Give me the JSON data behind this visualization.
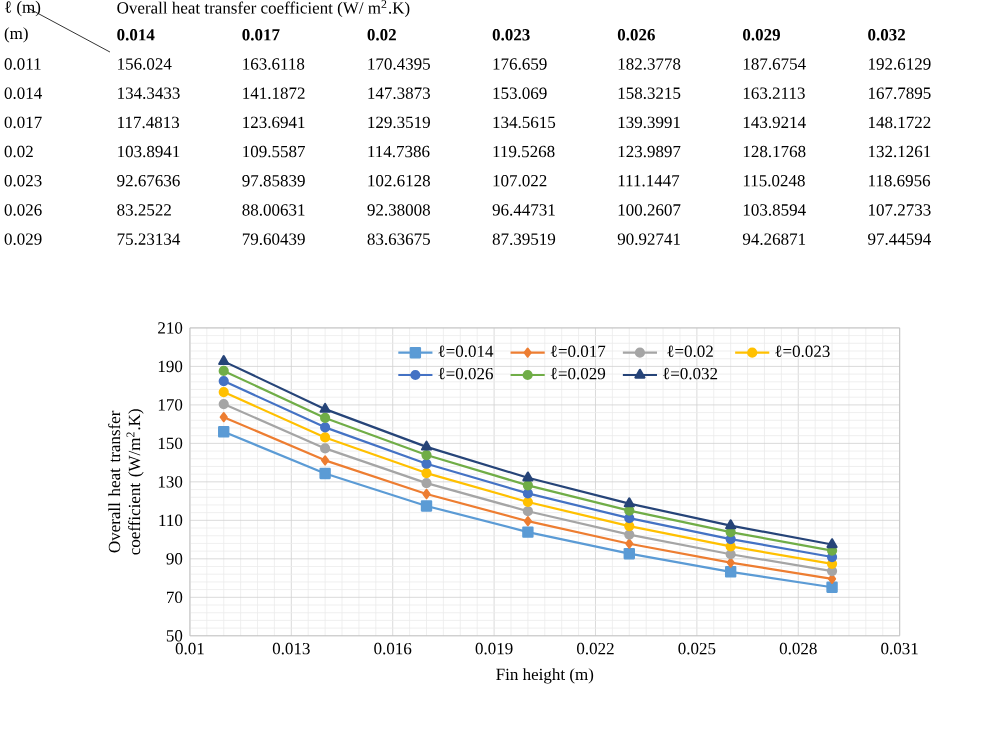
{
  "chart_data": [
    {
      "type": "heatmap",
      "data_labels": true,
      "title": "Overall heat transfer coefficient (W/ m$^{2}$.K)",
      "xlabel": "ℓ (m)",
      "ylabel": "(m)",
      "categories": [
        "0.014",
        "0.017",
        "0.02",
        "0.023",
        "0.026",
        "0.029",
        "0.032"
      ],
      "y_categories": [
        "0.011",
        "0.014",
        "0.017",
        "0.02",
        "0.023",
        "0.026",
        "0.029"
      ],
      "cells": [
        [
          156.024,
          163.6118,
          170.4395,
          176.659,
          182.3778,
          187.6754,
          192.6129
        ],
        [
          134.3433,
          141.1872,
          147.3873,
          153.069,
          158.3215,
          163.2113,
          167.7895
        ],
        [
          117.4813,
          123.6941,
          129.3519,
          134.5615,
          139.3991,
          143.9214,
          148.1722
        ],
        [
          103.8941,
          109.5587,
          114.7386,
          119.5268,
          123.9897,
          128.1768,
          132.1261
        ],
        [
          92.67636,
          97.85839,
          102.6128,
          107.022,
          111.1447,
          115.0248,
          118.6956
        ],
        [
          83.2522,
          88.00631,
          92.38008,
          96.44731,
          100.2607,
          103.8594,
          107.2733
        ],
        [
          75.23134,
          79.60439,
          83.63675,
          87.39519,
          90.92741,
          94.26871,
          97.44594
        ]
      ]
    },
    {
      "type": "line",
      "xlabel": "Fin height (m)",
      "ylabel": "Overall heat transfer coefficient (W/m$^{2}$.K)",
      "x": [
        0.011,
        0.014,
        0.017,
        0.02,
        0.023,
        0.026,
        0.029
      ],
      "series": [
        {
          "name": "ℓ=0.014",
          "color": "#5b9bd5",
          "marker": "square",
          "values": [
            156.024,
            134.3433,
            117.4813,
            103.8941,
            92.67636,
            83.2522,
            75.23134
          ]
        },
        {
          "name": "ℓ=0.017",
          "color": "#ed7d31",
          "marker": "diamond",
          "values": [
            163.6118,
            141.1872,
            123.6941,
            109.5587,
            97.85839,
            88.00631,
            79.60439
          ]
        },
        {
          "name": "ℓ=0.02",
          "color": "#a5a5a5",
          "marker": "circle",
          "values": [
            170.4395,
            147.3873,
            129.3519,
            114.7386,
            102.6128,
            92.38008,
            83.63675
          ]
        },
        {
          "name": "ℓ=0.023",
          "color": "#ffc000",
          "marker": "circle",
          "values": [
            176.659,
            153.069,
            134.5615,
            119.5268,
            107.022,
            96.44731,
            87.39519
          ]
        },
        {
          "name": "ℓ=0.026",
          "color": "#4472c4",
          "marker": "circle",
          "values": [
            182.3778,
            158.3215,
            139.3991,
            123.9897,
            111.1447,
            100.2607,
            90.92741
          ]
        },
        {
          "name": "ℓ=0.029",
          "color": "#70ad47",
          "marker": "circle",
          "values": [
            187.6754,
            163.2113,
            143.9214,
            128.1768,
            115.0248,
            103.8594,
            94.26871
          ]
        },
        {
          "name": "ℓ=0.032",
          "color": "#264478",
          "marker": "triangle",
          "values": [
            192.6129,
            167.7895,
            148.1722,
            132.1261,
            118.6956,
            107.2733,
            97.44594
          ]
        }
      ],
      "xlim": [
        0.01,
        0.031
      ],
      "xticks": [
        0.01,
        0.013,
        0.016,
        0.019,
        0.022,
        0.025,
        0.028,
        0.031
      ],
      "ylim": [
        50,
        210
      ],
      "yticks": [
        50,
        70,
        90,
        110,
        130,
        150,
        170,
        190,
        210
      ],
      "grid": true,
      "legend": "top"
    }
  ]
}
